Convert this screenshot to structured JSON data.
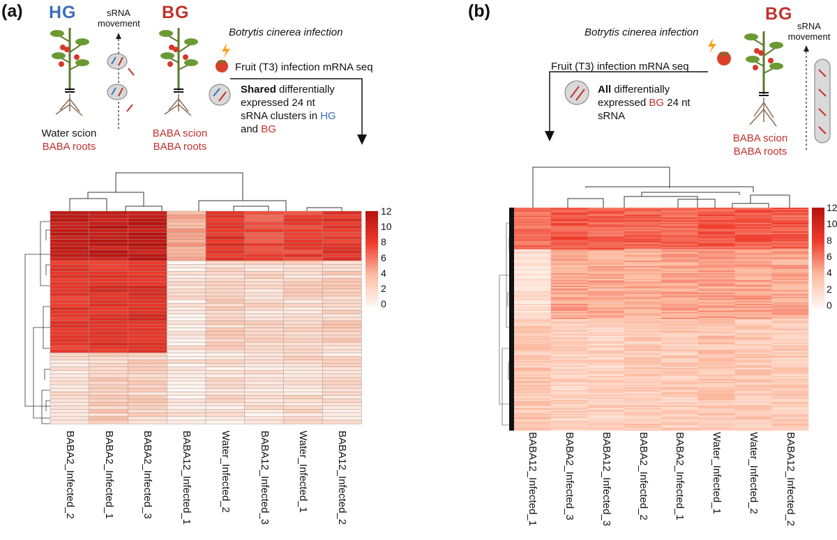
{
  "panel_a": {
    "label": "(a)",
    "hg_title": "HG",
    "bg_title": "BG",
    "srna_movement_line1": "sRNA",
    "srna_movement_line2": "movement",
    "infection_title": "Botrytis cinerea infection",
    "fruit_step": "Fruit (T3) infection mRNA seq",
    "shared_bold": "Shared",
    "shared_text_1": " differentially",
    "shared_text_2": "expressed 24 nt",
    "shared_text_3": "sRNA clusters  in ",
    "shared_hg": "HG",
    "shared_and": "and ",
    "shared_bg": "BG",
    "hg_scion": "Water scion",
    "hg_roots": "BABA roots",
    "bg_scion": "BABA scion",
    "bg_roots": "BABA roots"
  },
  "panel_b": {
    "label": "(b)",
    "bg_title": "BG",
    "srna_movement_line1": "sRNA",
    "srna_movement_line2": "movement",
    "infection_title": "Botrytis cinerea infection",
    "fruit_step": "Fruit (T3) infection mRNA seq",
    "all_bold": "All",
    "all_text_1": " differentially",
    "all_text_2a": "expressed ",
    "all_bg": "BG",
    "all_text_2b": " 24 nt",
    "all_text_3": "sRNA",
    "bg_scion": "BABA scion",
    "bg_roots": "BABA roots"
  },
  "colors": {
    "red": "#c0322b",
    "blue": "#3a6fb6",
    "heat_low": "#fff7f3",
    "heat_high": "#b5120f"
  },
  "chart_data": [
    {
      "type": "heatmap",
      "title": "",
      "columns": [
        "BABA2_Infected_2",
        "BABA2_Infected_1",
        "BABA2_Infected_3",
        "BABA12_Infected_1",
        "Water_Infected_2",
        "BABA12_Infected_3",
        "Water_Infected_1",
        "BABA12_Infected_2"
      ],
      "row_count": 60,
      "colorbar_ticks": [
        12,
        10,
        8,
        6,
        4,
        2,
        0
      ],
      "value_range": [
        0,
        12
      ],
      "row_blocks": [
        {
          "rows": 14,
          "values": [
            11.2,
            10.9,
            11.3,
            4.0,
            8.5,
            7.2,
            7.8,
            8.3
          ]
        },
        {
          "rows": 26,
          "values": [
            8.4,
            8.6,
            9.0,
            1.0,
            2.0,
            1.6,
            1.8,
            2.1
          ]
        },
        {
          "rows": 20,
          "values": [
            1.6,
            2.4,
            2.2,
            0.8,
            1.3,
            1.0,
            1.6,
            1.4
          ]
        }
      ]
    },
    {
      "type": "heatmap",
      "title": "",
      "columns": [
        "BABA12_Infected_1",
        "BABA2_Infected_3",
        "BABA12_Infected_3",
        "BABA2_Infected_2",
        "BABA2_Infected_1",
        "Water_Infected_1",
        "Water_Infected_2",
        "BABA12_Infected_2"
      ],
      "row_count": 160,
      "colorbar_ticks": [
        12,
        10,
        8,
        6,
        4,
        2,
        0
      ],
      "value_range": [
        0,
        12
      ],
      "row_blocks": [
        {
          "rows": 30,
          "values": [
            6.2,
            6.8,
            6.6,
            6.4,
            6.3,
            6.9,
            6.8,
            6.7
          ]
        },
        {
          "rows": 50,
          "values": [
            1.5,
            4.2,
            4.1,
            4.0,
            4.2,
            4.4,
            4.3,
            4.1
          ]
        },
        {
          "rows": 80,
          "values": [
            2.8,
            2.4,
            2.3,
            2.6,
            2.5,
            2.9,
            2.7,
            2.6
          ]
        }
      ]
    }
  ]
}
